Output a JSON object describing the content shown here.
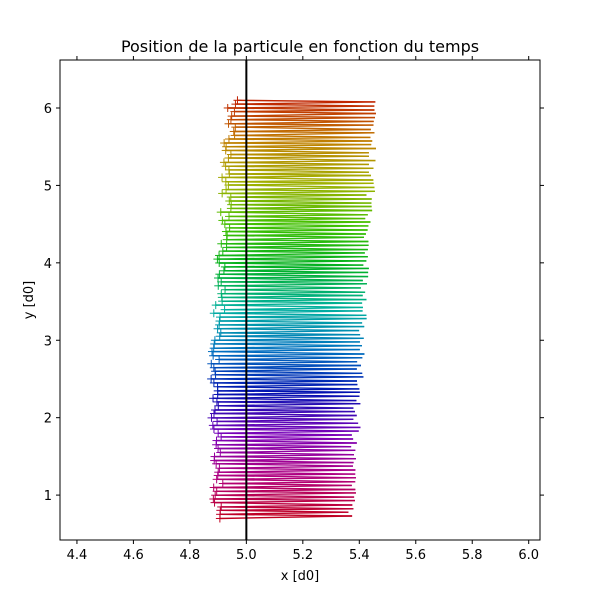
{
  "chart_data": {
    "type": "line",
    "title": "Position de la particule en fonction du temps",
    "xlabel": "x [d0]",
    "ylabel": "y [d0]",
    "xlim": [
      4.34,
      6.04
    ],
    "ylim": [
      0.42,
      6.62
    ],
    "xticks": [
      "4.4",
      "4.6",
      "4.8",
      "5.0",
      "5.2",
      "5.4",
      "5.6",
      "5.8",
      "6.0"
    ],
    "yticks": [
      "1",
      "2",
      "3",
      "4",
      "5",
      "6"
    ],
    "grid": false,
    "legend": "none",
    "reference_line": {
      "x": 5.0,
      "color": "#000000"
    },
    "start_marker": "+",
    "trajectory": {
      "y_start": 0.7,
      "y_end": 6.1,
      "y_step": 0.025,
      "x_right_bottom": 5.37,
      "x_right_top": 5.46,
      "x_left_bottom": 4.9,
      "x_left_mid": 4.89,
      "x_left_top": 4.95
    },
    "color_gradient_bottom_to_top": [
      "#c00020",
      "#b00080",
      "#7a00b8",
      "#0010b0",
      "#0070c0",
      "#00b0a0",
      "#00b020",
      "#40c000",
      "#a0b000",
      "#c08000",
      "#c02000"
    ]
  }
}
